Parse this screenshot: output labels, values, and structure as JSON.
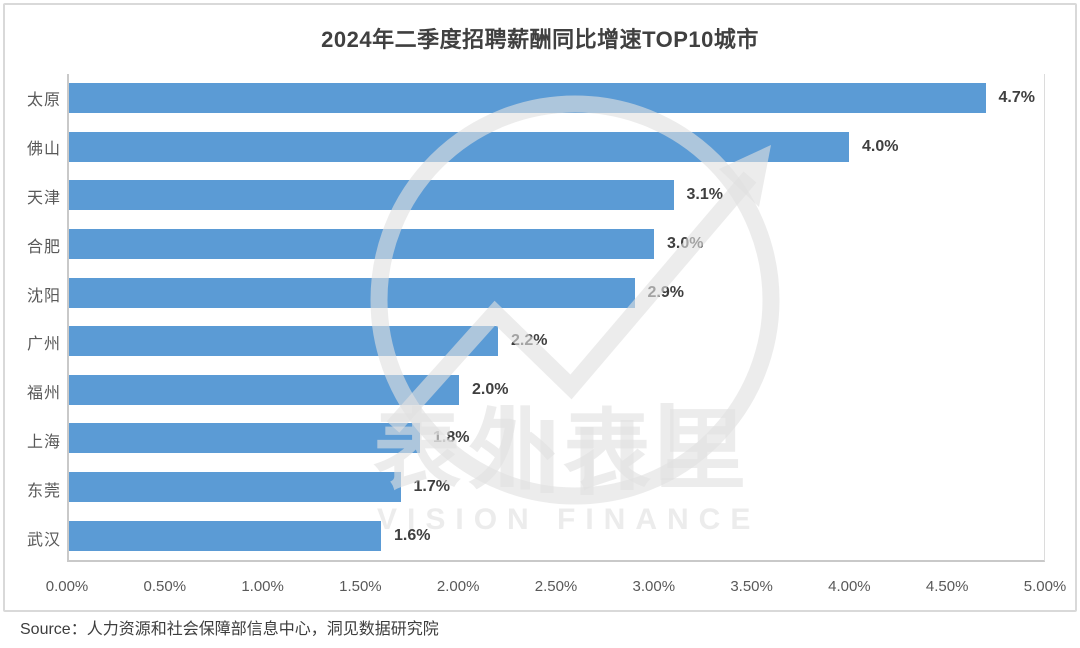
{
  "chart_data": {
    "type": "bar",
    "orientation": "horizontal",
    "title": "2024年二季度招聘薪酬同比增速TOP10城市",
    "categories": [
      "太原",
      "佛山",
      "天津",
      "合肥",
      "沈阳",
      "广州",
      "福州",
      "上海",
      "东莞",
      "武汉"
    ],
    "values": [
      4.7,
      4.0,
      3.1,
      3.0,
      2.9,
      2.2,
      2.0,
      1.8,
      1.7,
      1.6
    ],
    "value_labels": [
      "4.7%",
      "4.0%",
      "3.1%",
      "3.0%",
      "2.9%",
      "2.2%",
      "2.0%",
      "1.8%",
      "1.7%",
      "1.6%"
    ],
    "x_ticks": [
      "0.00%",
      "0.50%",
      "1.00%",
      "1.50%",
      "2.00%",
      "2.50%",
      "3.00%",
      "3.50%",
      "4.00%",
      "4.50%",
      "5.00%"
    ],
    "xlim": [
      0,
      5
    ],
    "xlabel": "",
    "ylabel": "",
    "grid": false,
    "legend_position": "none",
    "bar_color": "#5B9BD5",
    "axis_color": "#c9c9c9"
  },
  "watermark": {
    "text": "表外表里",
    "subtext": "VISION FINANCE"
  },
  "source": {
    "label": "Source：人力资源和社会保障部信息中心，洞见数据研究院"
  }
}
